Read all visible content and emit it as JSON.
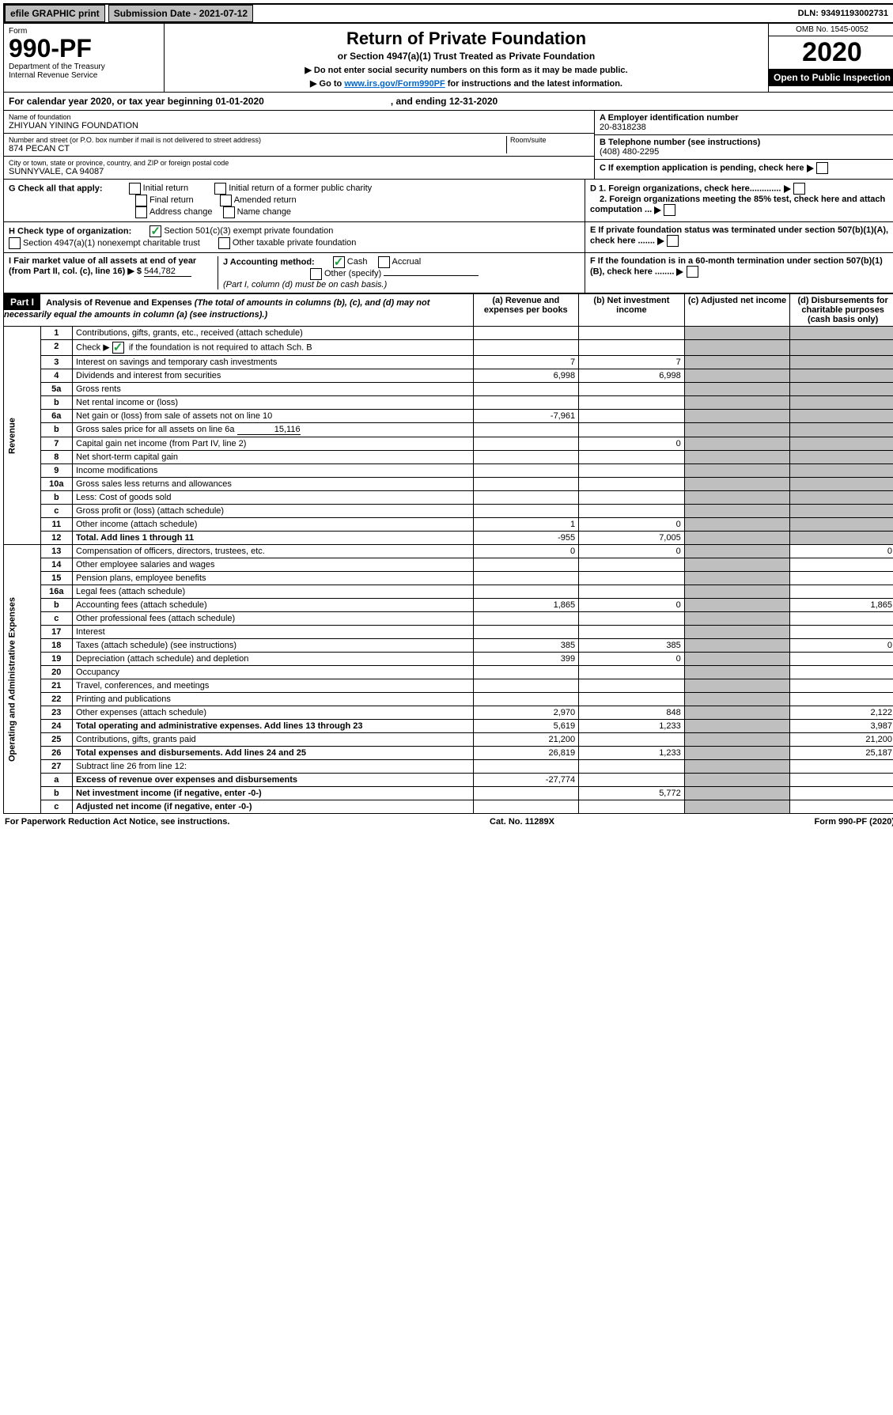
{
  "topbar": {
    "efile": "efile GRAPHIC print",
    "subdate_lbl": "Submission Date - 2021-07-12",
    "dln": "DLN: 93491193002731"
  },
  "hdr": {
    "form": "Form",
    "num": "990-PF",
    "dept": "Department of the Treasury\nInternal Revenue Service",
    "title": "Return of Private Foundation",
    "sub": "or Section 4947(a)(1) Trust Treated as Private Foundation",
    "note1": "▶ Do not enter social security numbers on this form as it may be made public.",
    "note2": "▶ Go to ",
    "link": "www.irs.gov/Form990PF",
    "note3": " for instructions and the latest information.",
    "omb": "OMB No. 1545-0052",
    "year": "2020",
    "open": "Open to Public Inspection"
  },
  "cal": {
    "a": "For calendar year 2020, or tax year beginning 01-01-2020",
    "b": ", and ending 12-31-2020"
  },
  "id": {
    "name_lbl": "Name of foundation",
    "name": "ZHIYUAN YINING FOUNDATION",
    "addr_lbl": "Number and street (or P.O. box number if mail is not delivered to street address)",
    "addr": "874 PECAN CT",
    "room_lbl": "Room/suite",
    "city_lbl": "City or town, state or province, country, and ZIP or foreign postal code",
    "city": "SUNNYVALE, CA  94087",
    "ein_lbl": "A Employer identification number",
    "ein": "20-8318238",
    "tel_lbl": "B Telephone number (see instructions)",
    "tel": "(408) 480-2295",
    "c": "C If exemption application is pending, check here",
    "d1": "D 1. Foreign organizations, check here.............",
    "d2": "2. Foreign organizations meeting the 85% test, check here and attach computation ...",
    "e": "E If private foundation status was terminated under section 507(b)(1)(A), check here .......",
    "f": "F If the foundation is in a 60-month termination under section 507(b)(1)(B), check here ........"
  },
  "g": {
    "lbl": "G Check all that apply:",
    "o1": "Initial return",
    "o2": "Initial return of a former public charity",
    "o3": "Final return",
    "o4": "Amended return",
    "o5": "Address change",
    "o6": "Name change"
  },
  "h": {
    "lbl": "H Check type of organization:",
    "o1": "Section 501(c)(3) exempt private foundation",
    "o2": "Section 4947(a)(1) nonexempt charitable trust",
    "o3": "Other taxable private foundation"
  },
  "i": {
    "lbl": "I Fair market value of all assets at end of year (from Part II, col. (c), line 16) ▶ $",
    "val": "544,782"
  },
  "j": {
    "lbl": "J Accounting method:",
    "o1": "Cash",
    "o2": "Accrual",
    "o3": "Other (specify)",
    "note": "(Part I, column (d) must be on cash basis.)"
  },
  "part1": {
    "tag": "Part I",
    "title": "Analysis of Revenue and Expenses",
    "sub": "(The total of amounts in columns (b), (c), and (d) may not necessarily equal the amounts in column (a) (see instructions).)",
    "col_a": "(a) Revenue and expenses per books",
    "col_b": "(b) Net investment income",
    "col_c": "(c) Adjusted net income",
    "col_d": "(d) Disbursements for charitable purposes (cash basis only)"
  },
  "sec": {
    "rev": "Revenue",
    "oae": "Operating and Administrative Expenses"
  },
  "rows": [
    {
      "n": "1",
      "t": "Contributions, gifts, grants, etc., received (attach schedule)"
    },
    {
      "n": "2",
      "t": "Check ▶ ",
      "t2": " if the foundation is not required to attach Sch. B",
      "chk": true
    },
    {
      "n": "3",
      "t": "Interest on savings and temporary cash investments",
      "a": "7",
      "b": "7"
    },
    {
      "n": "4",
      "t": "Dividends and interest from securities",
      "a": "6,998",
      "b": "6,998"
    },
    {
      "n": "5a",
      "t": "Gross rents"
    },
    {
      "n": "b",
      "t": "Net rental income or (loss)"
    },
    {
      "n": "6a",
      "t": "Net gain or (loss) from sale of assets not on line 10",
      "a": "-7,961"
    },
    {
      "n": "b",
      "t": "Gross sales price for all assets on line 6a",
      "u": "15,116"
    },
    {
      "n": "7",
      "t": "Capital gain net income (from Part IV, line 2)",
      "b": "0"
    },
    {
      "n": "8",
      "t": "Net short-term capital gain"
    },
    {
      "n": "9",
      "t": "Income modifications"
    },
    {
      "n": "10a",
      "t": "Gross sales less returns and allowances"
    },
    {
      "n": "b",
      "t": "Less: Cost of goods sold"
    },
    {
      "n": "c",
      "t": "Gross profit or (loss) (attach schedule)"
    },
    {
      "n": "11",
      "t": "Other income (attach schedule)",
      "a": "1",
      "b": "0"
    },
    {
      "n": "12",
      "t": "Total. Add lines 1 through 11",
      "a": "-955",
      "b": "7,005",
      "bold": true
    },
    {
      "n": "13",
      "t": "Compensation of officers, directors, trustees, etc.",
      "a": "0",
      "b": "0",
      "d": "0"
    },
    {
      "n": "14",
      "t": "Other employee salaries and wages"
    },
    {
      "n": "15",
      "t": "Pension plans, employee benefits"
    },
    {
      "n": "16a",
      "t": "Legal fees (attach schedule)"
    },
    {
      "n": "b",
      "t": "Accounting fees (attach schedule)",
      "a": "1,865",
      "b": "0",
      "d": "1,865"
    },
    {
      "n": "c",
      "t": "Other professional fees (attach schedule)"
    },
    {
      "n": "17",
      "t": "Interest"
    },
    {
      "n": "18",
      "t": "Taxes (attach schedule) (see instructions)",
      "a": "385",
      "b": "385",
      "d": "0"
    },
    {
      "n": "19",
      "t": "Depreciation (attach schedule) and depletion",
      "a": "399",
      "b": "0"
    },
    {
      "n": "20",
      "t": "Occupancy"
    },
    {
      "n": "21",
      "t": "Travel, conferences, and meetings"
    },
    {
      "n": "22",
      "t": "Printing and publications"
    },
    {
      "n": "23",
      "t": "Other expenses (attach schedule)",
      "a": "2,970",
      "b": "848",
      "d": "2,122"
    },
    {
      "n": "24",
      "t": "Total operating and administrative expenses. Add lines 13 through 23",
      "a": "5,619",
      "b": "1,233",
      "d": "3,987",
      "bold": true
    },
    {
      "n": "25",
      "t": "Contributions, gifts, grants paid",
      "a": "21,200",
      "d": "21,200"
    },
    {
      "n": "26",
      "t": "Total expenses and disbursements. Add lines 24 and 25",
      "a": "26,819",
      "b": "1,233",
      "d": "25,187",
      "bold": true
    },
    {
      "n": "27",
      "t": "Subtract line 26 from line 12:"
    },
    {
      "n": "a",
      "t": "Excess of revenue over expenses and disbursements",
      "a": "-27,774",
      "bold": true
    },
    {
      "n": "b",
      "t": "Net investment income (if negative, enter -0-)",
      "b": "5,772",
      "bold": true
    },
    {
      "n": "c",
      "t": "Adjusted net income (if negative, enter -0-)",
      "bold": true
    }
  ],
  "footer": {
    "l": "For Paperwork Reduction Act Notice, see instructions.",
    "c": "Cat. No. 11289X",
    "r": "Form 990-PF (2020)"
  }
}
